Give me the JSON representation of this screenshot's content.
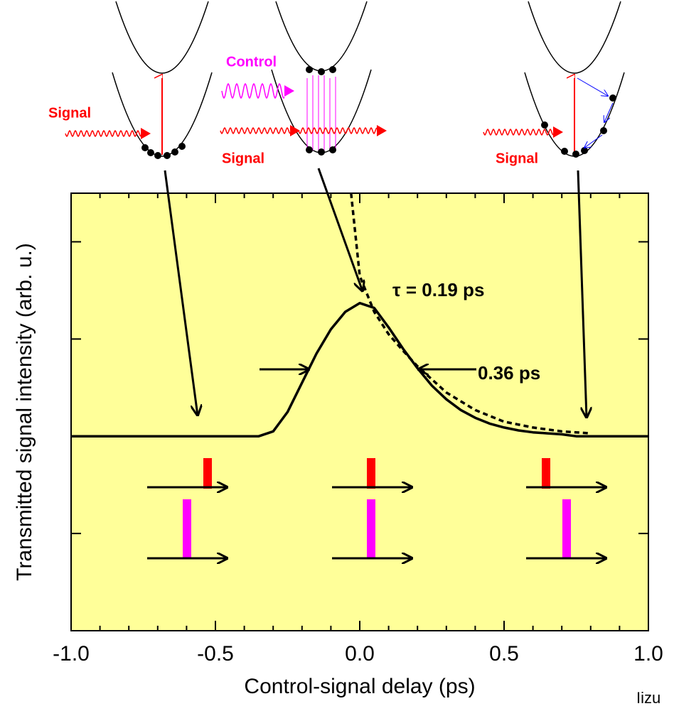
{
  "chart_data": {
    "type": "line",
    "xlabel": "Control-signal delay (ps)",
    "ylabel": "Transmitted signal intensity (arb. u.)",
    "xlim": [
      -1,
      1
    ],
    "xticks": [
      {
        "value": -1,
        "label": "-1.0"
      },
      -0.5,
      {
        "value": 0,
        "label": "0.0"
      },
      0.5,
      {
        "value": 1,
        "label": "1.0"
      }
    ],
    "ylim": [
      0,
      4.5
    ],
    "yticks": [
      1,
      2,
      3,
      4
    ],
    "background": "#ffff99",
    "x": [
      -1,
      -0.95,
      -0.9,
      -0.85,
      -0.8,
      -0.75,
      -0.7,
      -0.65,
      -0.6,
      -0.55,
      -0.5,
      -0.45,
      -0.4,
      -0.35,
      -0.3,
      -0.25,
      -0.2,
      -0.15,
      -0.1,
      -0.05,
      0,
      0.05,
      0.1,
      0.15,
      0.2,
      0.25,
      0.3,
      0.35,
      0.4,
      0.45,
      0.5,
      0.55,
      0.6,
      0.65,
      0.7,
      0.75,
      0.8,
      0.85,
      0.9,
      0.95,
      1
    ],
    "series": [
      {
        "color": "#000000",
        "values": [
          2.0,
          2.0,
          2.0,
          2.0,
          2.0,
          2.0,
          2.0,
          2.0,
          2.0,
          2.0,
          2.0,
          2.0,
          2.0,
          2.0,
          2.05,
          2.25,
          2.55,
          2.85,
          3.1,
          3.28,
          3.37,
          3.32,
          3.12,
          2.9,
          2.7,
          2.52,
          2.38,
          2.27,
          2.19,
          2.13,
          2.09,
          2.06,
          2.04,
          2.03,
          2.02,
          2.0,
          2.0,
          2.0,
          2.0,
          2.0,
          2.0
        ]
      },
      {
        "color": "#000000",
        "dashed": true,
        "x": [
          -0.03,
          0,
          0.05,
          0.1,
          0.15,
          0.2,
          0.3,
          0.4,
          0.5,
          0.6,
          0.7,
          0.8
        ],
        "values": [
          4.5,
          3.65,
          3.28,
          3.05,
          2.88,
          2.72,
          2.45,
          2.27,
          2.15,
          2.09,
          2.05,
          2.03
        ]
      }
    ],
    "annotations": {
      "tau": "τ = 0.19 ps",
      "fwhm": "0.36 ps",
      "control": "Control",
      "signal_left": "Signal",
      "signal_middle": "Signal",
      "signal_right": "Signal",
      "credit": "Iizu"
    }
  }
}
